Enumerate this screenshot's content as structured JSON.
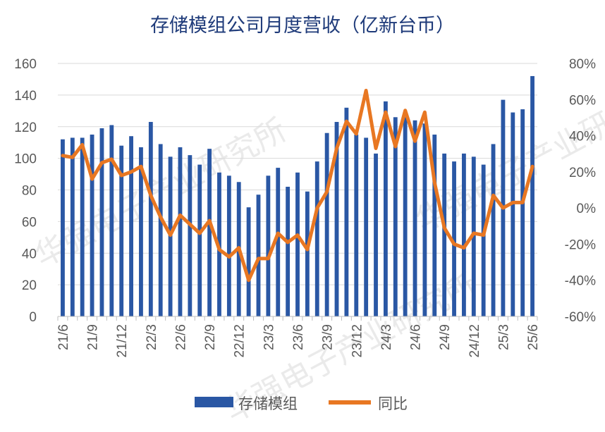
{
  "chart_data": {
    "type": "bar",
    "title": "存储模组公司月度营收（亿新台币）",
    "x_tick_labels": [
      "21/6",
      "21/9",
      "21/12",
      "22/3",
      "22/6",
      "22/9",
      "22/12",
      "23/3",
      "23/6",
      "23/9",
      "23/12",
      "24/3",
      "24/6",
      "24/9",
      "24/12",
      "25/3",
      "25/6"
    ],
    "y_left": {
      "ticks": [
        "0",
        "20",
        "40",
        "60",
        "80",
        "100",
        "120",
        "140",
        "160"
      ],
      "range": [
        0,
        160
      ]
    },
    "y_right": {
      "ticks": [
        "-60%",
        "-40%",
        "-20%",
        "0%",
        "20%",
        "40%",
        "60%",
        "80%"
      ],
      "range": [
        -60,
        80
      ]
    },
    "legend": {
      "position": "bottom",
      "labels": [
        "存储模组",
        "同比"
      ]
    },
    "watermark": "华强电子产业研究所",
    "colors": {
      "bar": "#2a57a4",
      "line": "#e87722",
      "text": "#595959",
      "title": "#1f3b7a",
      "axis": "#bfbfbf"
    },
    "series": [
      {
        "name": "存储模组",
        "type": "bar",
        "axis": "left",
        "values": [
          112,
          113,
          113,
          115,
          119,
          121,
          108,
          114,
          107,
          123,
          109,
          101,
          107,
          102,
          96,
          106,
          91,
          89,
          85,
          69,
          77,
          89,
          94,
          82,
          91,
          79,
          98,
          116,
          123,
          132,
          115,
          113,
          103,
          136,
          126,
          126,
          124,
          122,
          115,
          103,
          98,
          103,
          101,
          96,
          109,
          137,
          129,
          131,
          152
        ]
      },
      {
        "name": "同比",
        "type": "line",
        "axis": "right",
        "values": [
          29,
          28,
          35,
          16,
          25,
          27,
          18,
          20,
          23,
          7,
          -5,
          -15,
          -4,
          -9,
          -14,
          -7,
          -23,
          -27,
          -22,
          -40,
          -28,
          -28,
          -14,
          -19,
          -15,
          -23,
          0,
          9,
          33,
          48,
          41,
          65,
          33,
          53,
          34,
          54,
          37,
          53,
          14,
          -11,
          -20,
          -22,
          -14,
          -15,
          7,
          0,
          3,
          3,
          23
        ]
      }
    ]
  }
}
